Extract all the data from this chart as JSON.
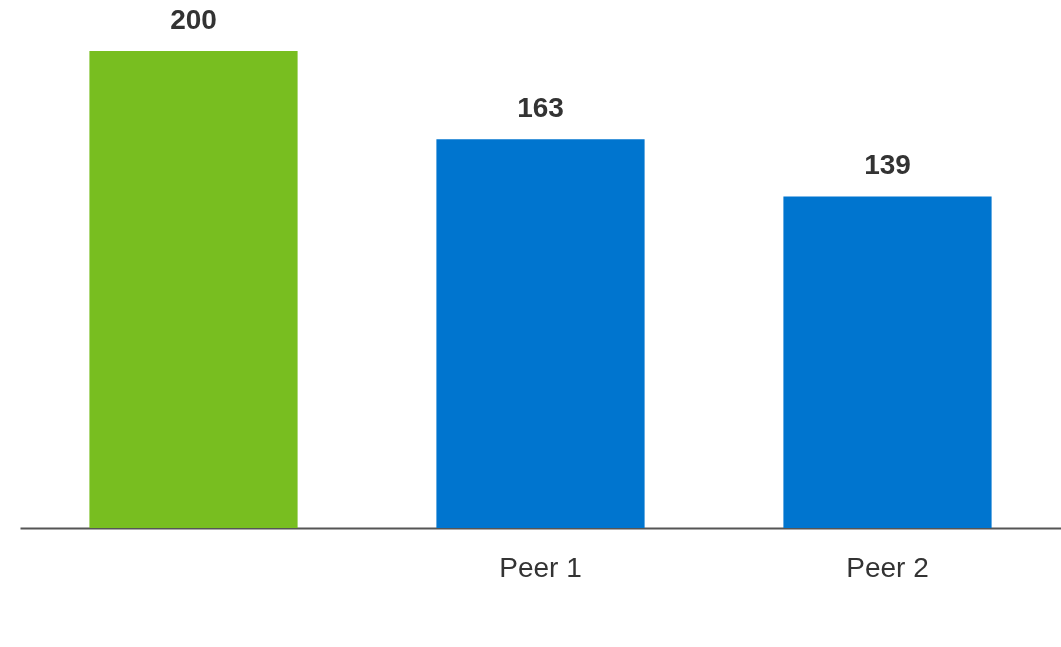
{
  "chart_data": {
    "type": "bar",
    "categories": [
      null,
      "Peer 1",
      "Peer 2"
    ],
    "values": [
      200,
      163,
      139
    ],
    "colors": [
      "#78be20",
      "#0075cf",
      "#0075cf"
    ],
    "data_labels": true
  }
}
